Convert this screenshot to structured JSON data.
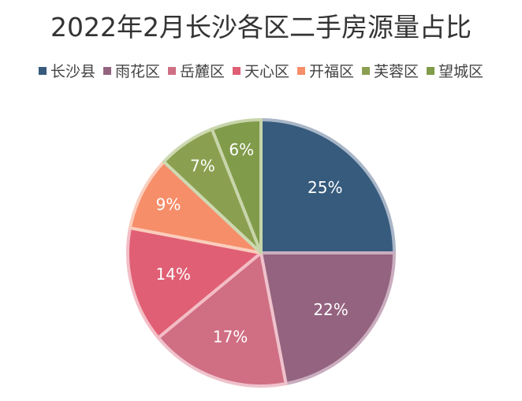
{
  "chart_data": {
    "type": "pie",
    "title": "2022年2月长沙各区二手房源量占比",
    "legend_position": "top",
    "categories": [
      "长沙县",
      "雨花区",
      "岳麓区",
      "天心区",
      "开福区",
      "芙蓉区",
      "望城区"
    ],
    "values": [
      25,
      22,
      17,
      14,
      9,
      7,
      6
    ],
    "data_labels": [
      "25%",
      "22%",
      "17%",
      "14%",
      "9%",
      "7%",
      "6%"
    ],
    "colors": [
      "#365b7d",
      "#94637f",
      "#d06e84",
      "#e05f74",
      "#f68e6a",
      "#8aa050",
      "#809b4a"
    ],
    "border_colors": [
      "#a9b6c8",
      "#c9adbf",
      "#efc2cc",
      "#f4bdc6",
      "#fbcdbc",
      "#cdd9b1",
      "#c8d5aa"
    ]
  }
}
